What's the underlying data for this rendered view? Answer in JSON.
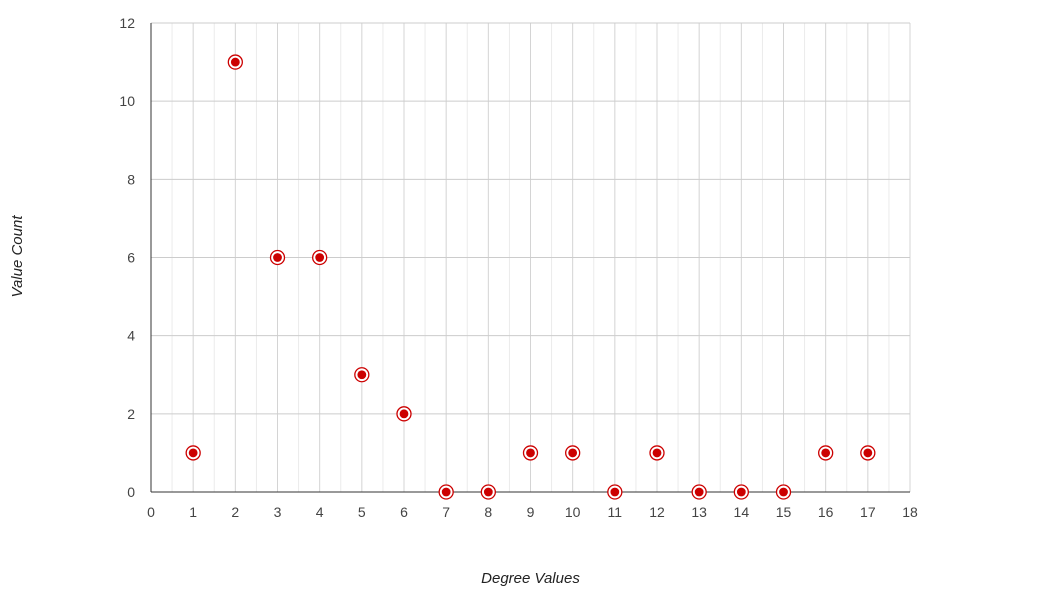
{
  "chart_data": {
    "type": "scatter",
    "xlabel": "Degree Values",
    "ylabel": "Value Count",
    "xlim": [
      0,
      18
    ],
    "ylim": [
      0,
      12
    ],
    "x_ticks": [
      "0",
      "1",
      "2",
      "3",
      "4",
      "5",
      "6",
      "7",
      "8",
      "9",
      "10",
      "11",
      "12",
      "13",
      "14",
      "15",
      "16",
      "17",
      "18"
    ],
    "y_ticks": [
      "0",
      "2",
      "4",
      "6",
      "8",
      "10",
      "12"
    ],
    "grid": true,
    "legend": "none",
    "series": [
      {
        "color": "#cc0000",
        "points": [
          {
            "x": 1,
            "y": 1
          },
          {
            "x": 2,
            "y": 11
          },
          {
            "x": 3,
            "y": 6
          },
          {
            "x": 4,
            "y": 6
          },
          {
            "x": 5,
            "y": 3
          },
          {
            "x": 6,
            "y": 2
          },
          {
            "x": 7,
            "y": 0
          },
          {
            "x": 8,
            "y": 0
          },
          {
            "x": 9,
            "y": 1
          },
          {
            "x": 10,
            "y": 1
          },
          {
            "x": 11,
            "y": 0
          },
          {
            "x": 12,
            "y": 1
          },
          {
            "x": 13,
            "y": 0
          },
          {
            "x": 14,
            "y": 0
          },
          {
            "x": 15,
            "y": 0
          },
          {
            "x": 16,
            "y": 1
          },
          {
            "x": 17,
            "y": 1
          }
        ]
      }
    ]
  }
}
